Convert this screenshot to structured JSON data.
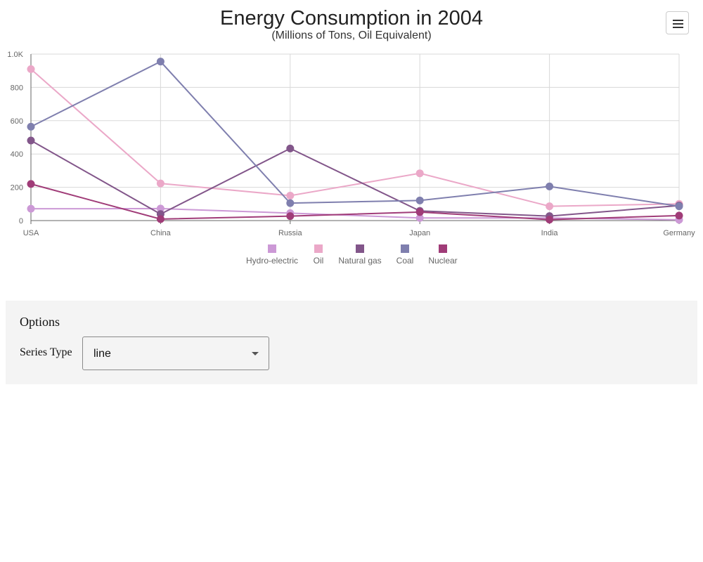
{
  "chart_data": {
    "type": "line",
    "title": "Energy Consumption in 2004",
    "subtitle": "(Millions of Tons, Oil Equivalent)",
    "categories": [
      "USA",
      "China",
      "Russia",
      "Japan",
      "India",
      "Germany"
    ],
    "ylim": [
      0,
      1000
    ],
    "yticks": [
      "0",
      "200",
      "400",
      "600",
      "800",
      "1.0K"
    ],
    "ytick_values": [
      0,
      200,
      400,
      600,
      800,
      1000
    ],
    "grid": true,
    "legend_position": "bottom",
    "series": [
      {
        "name": "Hydro-electric",
        "color": "#cc99d6",
        "values": [
          71,
          72,
          45,
          16,
          16,
          5
        ]
      },
      {
        "name": "Oil",
        "color": "#eba8c8",
        "values": [
          910,
          223,
          150,
          284,
          86,
          100
        ]
      },
      {
        "name": "Natural gas",
        "color": "#82568a",
        "values": [
          481,
          39,
          433,
          58,
          27,
          90
        ]
      },
      {
        "name": "Coal",
        "color": "#7f7fae",
        "values": [
          564,
          955,
          105,
          121,
          205,
          86
        ]
      },
      {
        "name": "Nuclear",
        "color": "#a03c78",
        "values": [
          220,
          9,
          27,
          51,
          6,
          30
        ]
      }
    ]
  },
  "options": {
    "title": "Options",
    "series_type_label": "Series Type",
    "series_type_value": "line"
  },
  "menu": {
    "icon": "hamburger-menu-icon"
  }
}
